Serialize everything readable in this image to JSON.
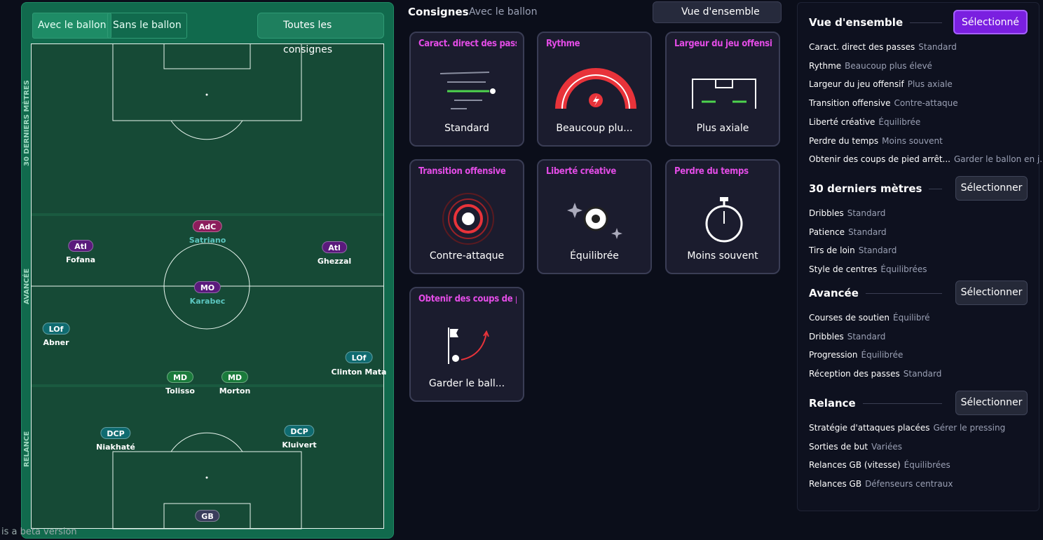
{
  "pitch": {
    "tabs": [
      "Avec le ballon",
      "Sans le ballon"
    ],
    "all_button": "Toutes les consignes",
    "zones": [
      "30 DERNIERS MÈTRES",
      "AVANCÉE",
      "RELANCE"
    ],
    "players": [
      {
        "role": "AdC",
        "name": "Satriano"
      },
      {
        "role": "Atl",
        "name": "Fofana"
      },
      {
        "role": "Atl",
        "name": "Ghezzal"
      },
      {
        "role": "MO",
        "name": "Karabec"
      },
      {
        "role": "LOf",
        "name": "Abner"
      },
      {
        "role": "LOf",
        "name": "Clinton Mata"
      },
      {
        "role": "MD",
        "name": "Tolisso"
      },
      {
        "role": "MD",
        "name": "Morton"
      },
      {
        "role": "DCP",
        "name": "Niakhaté"
      },
      {
        "role": "DCP",
        "name": "Kluivert"
      },
      {
        "role": "GB"
      }
    ]
  },
  "beta_note": "is a beta version",
  "header": {
    "title": "Consignes",
    "subtitle": "Avec le ballon",
    "view": "Vue d'ensemble"
  },
  "cards": [
    {
      "title": "Caract. direct des passes",
      "value": "Standard"
    },
    {
      "title": "Rythme",
      "value": "Beaucoup plu..."
    },
    {
      "title": "Largeur du jeu offensif",
      "value": "Plus axiale"
    },
    {
      "title": "Transition offensive",
      "value": "Contre-attaque"
    },
    {
      "title": "Liberté créative",
      "value": "Équilibrée"
    },
    {
      "title": "Perdre du temps",
      "value": "Moins souvent"
    },
    {
      "title": "Obtenir des coups de pied arrêtés",
      "value": "Garder le ball..."
    }
  ],
  "panel": [
    {
      "title": "Vue d'ensemble",
      "button": "Sélectionné",
      "items": [
        {
          "label": "Caract. direct des passes",
          "value": "Standard"
        },
        {
          "label": "Rythme",
          "value": "Beaucoup plus élevé"
        },
        {
          "label": "Largeur du jeu offensif",
          "value": "Plus axiale"
        },
        {
          "label": "Transition offensive",
          "value": "Contre-attaque"
        },
        {
          "label": "Liberté créative",
          "value": "Équilibrée"
        },
        {
          "label": "Perdre du temps",
          "value": "Moins souvent"
        },
        {
          "label": "Obtenir des coups de pied arrêt...",
          "value": "Garder le ballon en j..."
        }
      ]
    },
    {
      "title": "30 derniers mètres",
      "button": "Sélectionner",
      "items": [
        {
          "label": "Dribbles",
          "value": "Standard"
        },
        {
          "label": "Patience",
          "value": "Standard"
        },
        {
          "label": "Tirs de loin",
          "value": "Standard"
        },
        {
          "label": "Style de centres",
          "value": "Équilibrées"
        }
      ]
    },
    {
      "title": "Avancée",
      "button": "Sélectionner",
      "items": [
        {
          "label": "Courses de soutien",
          "value": "Équilibré"
        },
        {
          "label": "Dribbles",
          "value": "Standard"
        },
        {
          "label": "Progression",
          "value": "Équilibrée"
        },
        {
          "label": "Réception des passes",
          "value": "Standard"
        }
      ]
    },
    {
      "title": "Relance",
      "button": "Sélectionner",
      "items": [
        {
          "label": "Stratégie d'attaques placées",
          "value": "Gérer le pressing"
        },
        {
          "label": "Sorties de but",
          "value": "Variées"
        },
        {
          "label": "Relances GB (vitesse)",
          "value": "Équilibrées"
        },
        {
          "label": "Relances GB",
          "value": "Défenseurs centraux"
        }
      ]
    }
  ]
}
